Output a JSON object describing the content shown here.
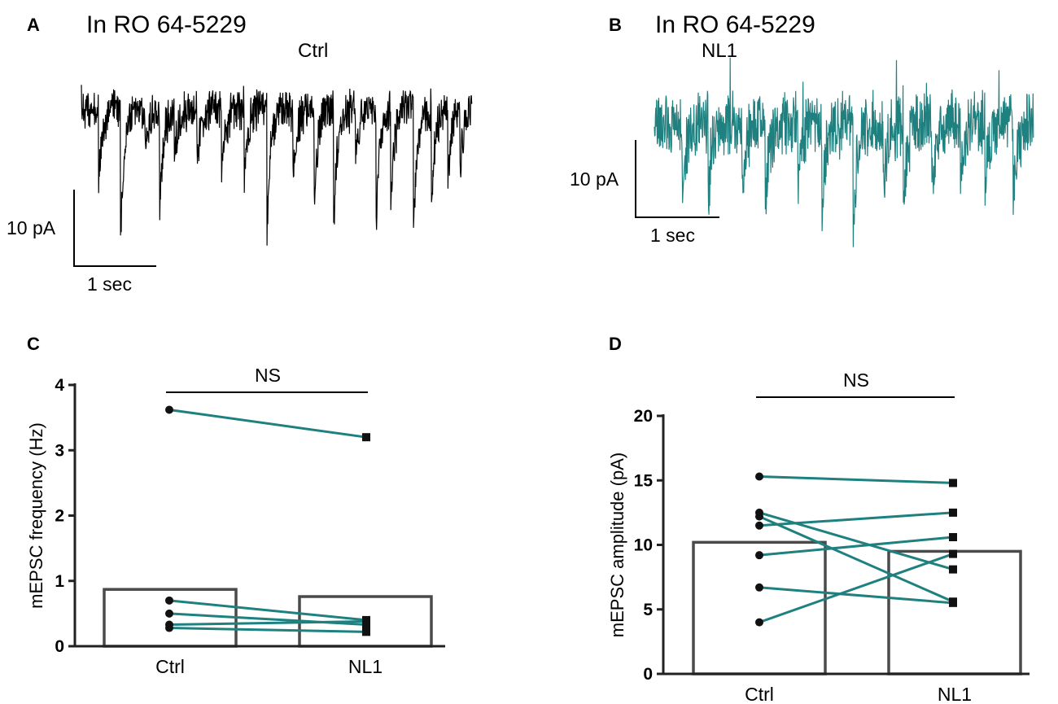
{
  "panels": {
    "A": {
      "letter": "A",
      "title": "In RO 64-5229",
      "condition": "Ctrl",
      "trace_color": "#000000",
      "scale_y_label": "10 pA",
      "scale_x_label": "1 sec"
    },
    "B": {
      "letter": "B",
      "title": "In RO 64-5229",
      "condition": "NL1",
      "trace_color": "#1f8080",
      "scale_y_label": "10 pA",
      "scale_x_label": "1 sec"
    }
  },
  "colors": {
    "bar_edge": "#4a4a4a",
    "pair_line": "#1f8080",
    "marker": "#111111",
    "axis": "#222222"
  },
  "chart_data": [
    {
      "panel": "C",
      "type": "bar",
      "ylabel": "mEPSC frequency (Hz)",
      "categories": [
        "Ctrl",
        "NL1"
      ],
      "values": [
        0.87,
        0.76
      ],
      "ylim": [
        0,
        4
      ],
      "yticks": [
        0,
        1,
        2,
        3,
        4
      ],
      "significance": "NS",
      "pairs": [
        [
          3.62,
          3.2
        ],
        [
          0.7,
          0.4
        ],
        [
          0.5,
          0.33
        ],
        [
          0.33,
          0.38
        ],
        [
          0.28,
          0.22
        ]
      ]
    },
    {
      "panel": "D",
      "type": "bar",
      "ylabel": "mEPSC amplitude (pA)",
      "categories": [
        "Ctrl",
        "NL1"
      ],
      "values": [
        10.2,
        9.5
      ],
      "ylim": [
        0,
        20
      ],
      "yticks": [
        0,
        5,
        10,
        15,
        20
      ],
      "significance": "NS",
      "pairs": [
        [
          15.3,
          14.8
        ],
        [
          12.5,
          8.1
        ],
        [
          12.2,
          5.6
        ],
        [
          11.5,
          12.5
        ],
        [
          9.2,
          10.6
        ],
        [
          6.7,
          5.5
        ],
        [
          4.0,
          9.3
        ]
      ]
    }
  ]
}
